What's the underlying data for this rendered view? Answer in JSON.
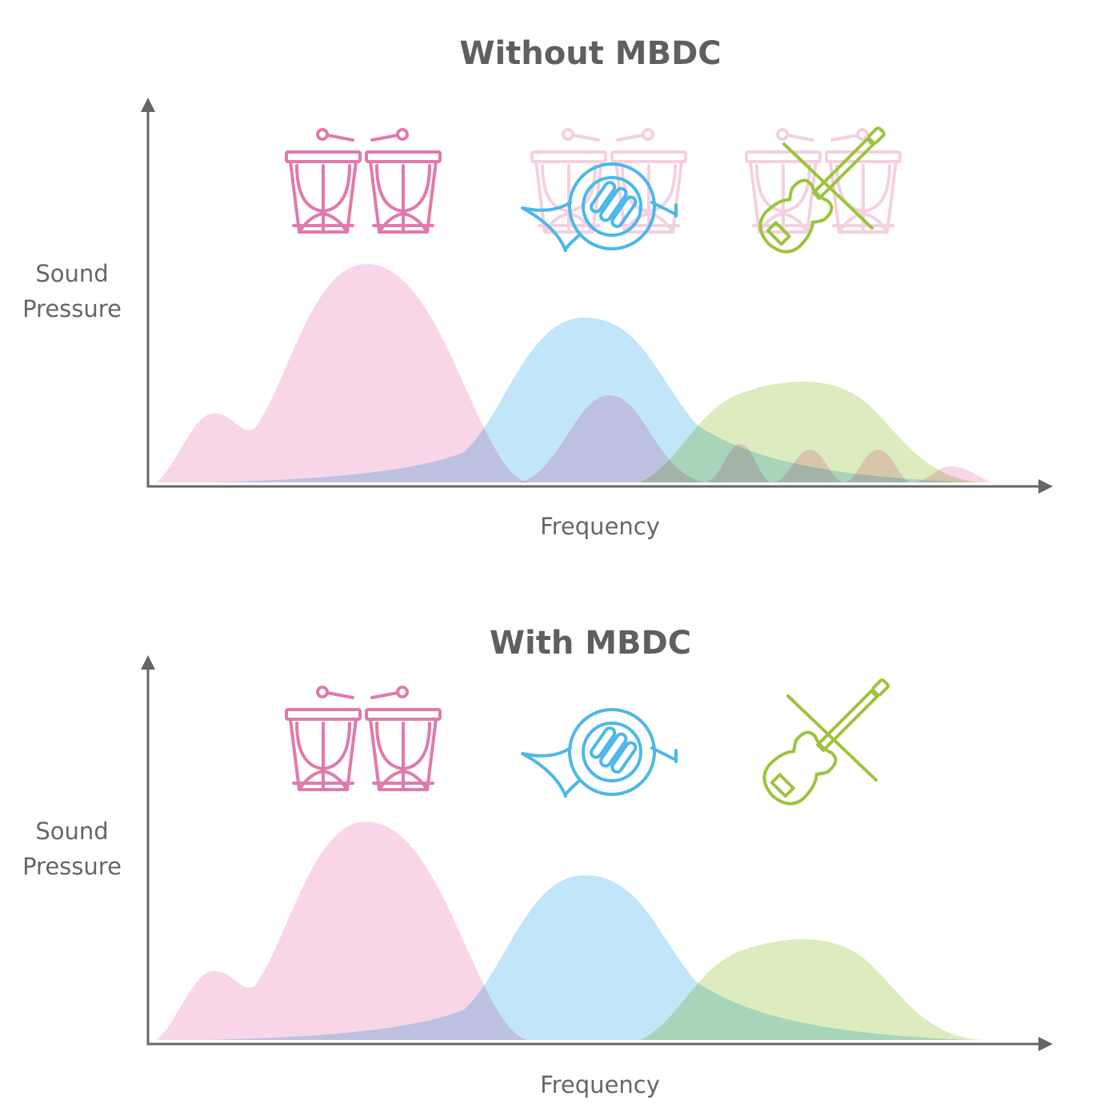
{
  "panels": [
    {
      "title": "Without MBDC",
      "y_label": [
        "Sound",
        "Pressure"
      ],
      "x_label": "Frequency"
    },
    {
      "title": "With MBDC",
      "y_label": [
        "Sound",
        "Pressure"
      ],
      "x_label": "Frequency"
    }
  ]
}
